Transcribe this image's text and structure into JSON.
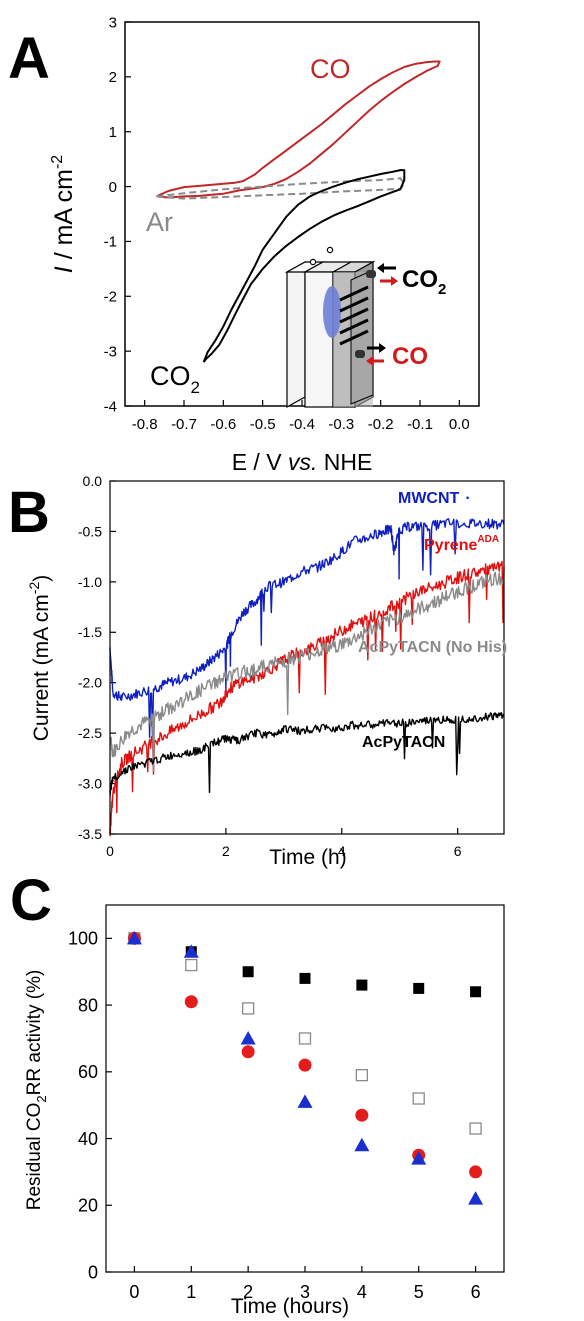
{
  "colors": {
    "red": "#c0282a",
    "grey": "#8a8a8a",
    "black": "#000000",
    "blue": "#1020c0",
    "bright_red": "#e01010",
    "marker_red": "#e51c1c",
    "marker_blue": "#1a2fd0",
    "cell_blue": "#6f7fd6"
  },
  "panels": {
    "a": {
      "letter": "A"
    },
    "b": {
      "letter": "B"
    },
    "c": {
      "letter": "C"
    }
  },
  "chart_data": [
    {
      "panel": "A",
      "type": "line",
      "xlabel_prefix": "E / V ",
      "xlabel_italic": "vs.",
      "xlabel_suffix": " NHE",
      "ylabel_italic": "I",
      "ylabel_main": " / mA cm",
      "ylabel_sup": "-2",
      "xlim": [
        -0.85,
        0.05
      ],
      "ylim": [
        -4,
        3
      ],
      "x_ticks": [
        -0.8,
        -0.7,
        -0.6,
        -0.5,
        -0.4,
        -0.3,
        -0.2,
        -0.1,
        0.0
      ],
      "x_tick_labels": [
        "-0.8",
        "-0.7",
        "-0.6",
        "-0.5",
        "-0.4",
        "-0.3",
        "-0.2",
        "-0.1",
        "0.0"
      ],
      "y_ticks": [
        -4,
        -3,
        -2,
        -1,
        0,
        1,
        2,
        3
      ],
      "y_tick_labels": [
        "-4",
        "-3",
        "-2",
        "-1",
        "0",
        "1",
        "2",
        "3"
      ],
      "annotations": {
        "co": "CO",
        "ar": "Ar",
        "co2_main": "CO",
        "co2_sub": "2"
      },
      "inset": {
        "co2_main": "CO",
        "co2_sub": "2",
        "co": "CO"
      },
      "series": [
        {
          "name": "CO",
          "color_key": "red",
          "dash": false,
          "x": [
            -0.77,
            -0.74,
            -0.7,
            -0.65,
            -0.6,
            -0.57,
            -0.55,
            -0.52,
            -0.5,
            -0.47,
            -0.44,
            -0.41,
            -0.38,
            -0.35,
            -0.32,
            -0.29,
            -0.26,
            -0.23,
            -0.2,
            -0.17,
            -0.14,
            -0.11,
            -0.08,
            -0.06,
            -0.05,
            -0.055,
            -0.08,
            -0.11,
            -0.14,
            -0.17,
            -0.2,
            -0.23,
            -0.26,
            -0.29,
            -0.32,
            -0.35,
            -0.38,
            -0.41,
            -0.44,
            -0.47,
            -0.5,
            -0.53,
            -0.56,
            -0.58,
            -0.6,
            -0.63,
            -0.66,
            -0.7,
            -0.74,
            -0.77
          ],
          "y": [
            -0.18,
            -0.08,
            -0.01,
            0.02,
            0.05,
            0.07,
            0.1,
            0.22,
            0.34,
            0.5,
            0.66,
            0.82,
            0.98,
            1.14,
            1.32,
            1.5,
            1.66,
            1.82,
            1.96,
            2.08,
            2.18,
            2.24,
            2.27,
            2.28,
            2.28,
            2.2,
            2.12,
            2.0,
            1.87,
            1.72,
            1.56,
            1.38,
            1.18,
            0.98,
            0.78,
            0.6,
            0.42,
            0.27,
            0.14,
            0.05,
            -0.01,
            -0.04,
            -0.07,
            -0.1,
            -0.13,
            -0.15,
            -0.17,
            -0.18,
            -0.2,
            -0.18
          ]
        },
        {
          "name": "Ar",
          "color_key": "grey",
          "dash": true,
          "x": [
            -0.77,
            -0.7,
            -0.6,
            -0.5,
            -0.4,
            -0.3,
            -0.2,
            -0.15,
            -0.14,
            -0.15,
            -0.2,
            -0.3,
            -0.4,
            -0.5,
            -0.6,
            -0.7,
            -0.77
          ],
          "y": [
            -0.18,
            -0.12,
            -0.05,
            0.0,
            0.05,
            0.09,
            0.12,
            0.15,
            0.05,
            -0.04,
            -0.06,
            -0.09,
            -0.13,
            -0.16,
            -0.19,
            -0.22,
            -0.18
          ]
        },
        {
          "name": "CO2",
          "color_key": "black",
          "dash": false,
          "x": [
            -0.65,
            -0.64,
            -0.62,
            -0.6,
            -0.58,
            -0.55,
            -0.52,
            -0.5,
            -0.47,
            -0.44,
            -0.41,
            -0.38,
            -0.35,
            -0.32,
            -0.29,
            -0.26,
            -0.23,
            -0.2,
            -0.17,
            -0.15,
            -0.14,
            -0.14,
            -0.15,
            -0.17,
            -0.2,
            -0.23,
            -0.26,
            -0.29,
            -0.32,
            -0.35,
            -0.38,
            -0.41,
            -0.44,
            -0.47,
            -0.5,
            -0.53,
            -0.55,
            -0.57,
            -0.59,
            -0.61,
            -0.63,
            -0.645,
            -0.65
          ],
          "y": [
            -3.2,
            -3.02,
            -2.8,
            -2.55,
            -2.25,
            -1.85,
            -1.45,
            -1.15,
            -0.85,
            -0.55,
            -0.33,
            -0.18,
            -0.08,
            0.0,
            0.07,
            0.13,
            0.18,
            0.23,
            0.27,
            0.3,
            0.3,
            0.12,
            -0.05,
            -0.1,
            -0.18,
            -0.27,
            -0.36,
            -0.44,
            -0.53,
            -0.64,
            -0.77,
            -0.92,
            -1.08,
            -1.27,
            -1.5,
            -1.78,
            -2.05,
            -2.33,
            -2.62,
            -2.88,
            -3.05,
            -3.15,
            -3.2
          ]
        }
      ]
    },
    {
      "panel": "B",
      "type": "line",
      "xlabel": "Time (h)",
      "ylabel_main": "Current (mA cm",
      "ylabel_sup": "-2",
      "ylabel_end": ")",
      "xlim": [
        0,
        6.8
      ],
      "ylim": [
        -3.5,
        0
      ],
      "x_ticks": [
        0,
        2,
        4,
        6
      ],
      "x_tick_labels": [
        "0",
        "2",
        "4",
        "6"
      ],
      "y_ticks": [
        -3.5,
        -3.0,
        -2.5,
        -2.0,
        -1.5,
        -1.0,
        -0.5,
        0.0
      ],
      "y_tick_labels": [
        "-3.5",
        "-3.0",
        "-2.5",
        "-2.0",
        "-1.5",
        "-1.0",
        "-0.5",
        "0.0"
      ],
      "legend_labels": {
        "mwcnt": "MWCNT",
        "mwcnt_dot": "·",
        "pyrene": "Pyrene",
        "pyrene_sup": "ADA",
        "nohis": "AcPyTACN (No His)",
        "acpy": "AcPyTACN"
      },
      "series": [
        {
          "name": "MWCNT",
          "color_key": "blue",
          "x": [
            0.0,
            0.05,
            0.2,
            0.5,
            0.8,
            1.0,
            1.3,
            1.6,
            1.8,
            2.0,
            2.1,
            2.3,
            2.5,
            2.7,
            3.0,
            3.3,
            3.6,
            3.9,
            4.2,
            4.5,
            4.7,
            4.85,
            4.9,
            5.0,
            5.2,
            5.5,
            5.8,
            6.2,
            6.5,
            6.8
          ],
          "y": [
            -1.65,
            -2.1,
            -2.15,
            -2.1,
            -2.05,
            -2.0,
            -1.95,
            -1.85,
            -1.75,
            -1.65,
            -1.5,
            -1.3,
            -1.2,
            -1.05,
            -1.0,
            -0.9,
            -0.85,
            -0.75,
            -0.6,
            -0.55,
            -0.5,
            -0.48,
            -0.7,
            -0.48,
            -0.45,
            -0.45,
            -0.42,
            -0.42,
            -0.42,
            -0.43
          ]
        },
        {
          "name": "Pyrene ADA",
          "color_key": "bright_red",
          "x": [
            0.0,
            0.05,
            0.2,
            0.4,
            0.7,
            1.0,
            1.3,
            1.6,
            1.9,
            2.0,
            2.2,
            2.5,
            2.8,
            3.0,
            3.2,
            3.5,
            3.8,
            4.1,
            4.4,
            4.7,
            5.0,
            5.3,
            5.6,
            5.9,
            6.2,
            6.5,
            6.8
          ],
          "y": [
            -3.5,
            -3.1,
            -2.8,
            -2.7,
            -2.6,
            -2.5,
            -2.4,
            -2.3,
            -2.2,
            -2.1,
            -2.0,
            -1.95,
            -1.85,
            -1.78,
            -1.72,
            -1.65,
            -1.55,
            -1.45,
            -1.38,
            -1.3,
            -1.2,
            -1.1,
            -1.05,
            -0.98,
            -0.92,
            -0.88,
            -0.85
          ]
        },
        {
          "name": "AcPyTACN (No His)",
          "color_key": "grey",
          "x": [
            0.0,
            0.05,
            0.3,
            0.6,
            0.9,
            1.2,
            1.5,
            1.8,
            2.0,
            2.3,
            2.6,
            2.9,
            3.2,
            3.5,
            3.8,
            4.1,
            4.4,
            4.7,
            5.0,
            5.3,
            5.6,
            5.9,
            6.2,
            6.5,
            6.8
          ],
          "y": [
            -2.55,
            -2.7,
            -2.5,
            -2.4,
            -2.3,
            -2.2,
            -2.1,
            -2.0,
            -1.95,
            -1.9,
            -1.85,
            -1.8,
            -1.75,
            -1.7,
            -1.65,
            -1.6,
            -1.5,
            -1.42,
            -1.35,
            -1.28,
            -1.2,
            -1.12,
            -1.05,
            -1.0,
            -0.95
          ]
        },
        {
          "name": "AcPyTACN",
          "color_key": "black",
          "x": [
            0.0,
            0.05,
            0.3,
            0.6,
            0.9,
            1.2,
            1.5,
            1.8,
            2.0,
            2.2,
            2.5,
            2.8,
            3.0,
            3.3,
            3.6,
            3.9,
            4.2,
            4.5,
            4.8,
            5.1,
            5.4,
            5.7,
            6.0,
            6.3,
            6.6,
            6.8
          ],
          "y": [
            -3.1,
            -2.95,
            -2.85,
            -2.8,
            -2.75,
            -2.7,
            -2.68,
            -2.6,
            -2.55,
            -2.58,
            -2.5,
            -2.52,
            -2.45,
            -2.48,
            -2.45,
            -2.45,
            -2.42,
            -2.42,
            -2.4,
            -2.4,
            -2.38,
            -2.37,
            -2.36,
            -2.35,
            -2.33,
            -2.32
          ]
        }
      ]
    },
    {
      "panel": "C",
      "type": "scatter",
      "xlabel": "Time (hours)",
      "ylabel_main": "Residual CO",
      "ylabel_sub": "2",
      "ylabel_end": "RR activity (%)",
      "xlim": [
        -0.5,
        6.5
      ],
      "ylim": [
        0,
        110
      ],
      "x_ticks": [
        0,
        1,
        2,
        3,
        4,
        5,
        6
      ],
      "x_tick_labels": [
        "0",
        "1",
        "2",
        "3",
        "4",
        "5",
        "6"
      ],
      "y_ticks": [
        0,
        20,
        40,
        60,
        80,
        100
      ],
      "y_tick_labels": [
        "0",
        "20",
        "40",
        "60",
        "80",
        "100"
      ],
      "x": [
        0,
        1,
        2,
        3,
        4,
        5,
        6
      ],
      "series": [
        {
          "marker": "square-filled",
          "color_key": "black",
          "values": [
            100,
            96,
            90,
            88,
            86,
            85,
            84
          ]
        },
        {
          "marker": "square-open",
          "color_key": "grey",
          "values": [
            100,
            92,
            79,
            70,
            59,
            52,
            43
          ]
        },
        {
          "marker": "circle",
          "color_key": "marker_red",
          "values": [
            100,
            81,
            66,
            62,
            47,
            35,
            30
          ]
        },
        {
          "marker": "triangle",
          "color_key": "marker_blue",
          "values": [
            100,
            96,
            70,
            51,
            38,
            34,
            22
          ]
        }
      ]
    }
  ]
}
